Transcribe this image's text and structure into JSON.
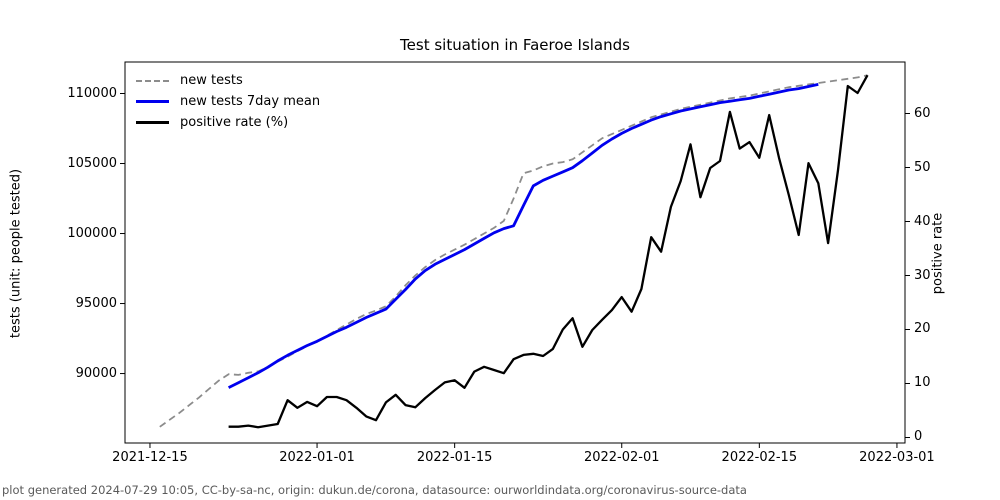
{
  "title": "Test situation in Faeroe Islands",
  "footer": "plot generated 2024-07-29 10:05, CC-by-sa-nc, origin: dukun.de/corona, datasource: ourworldindata.org/coronavirus-source-data",
  "colors": {
    "new_tests": "#8c8c8c",
    "new_tests_7day_mean": "#0000ee",
    "positive_rate": "#000000",
    "axis": "#000000",
    "footer_text": "#5a5a5a"
  },
  "legend": {
    "items": [
      {
        "label": "new tests",
        "color": "#8c8c8c",
        "style": "dashed"
      },
      {
        "label": "new tests 7day mean",
        "color": "#0000ee",
        "style": "solid"
      },
      {
        "label": "positive rate (%)",
        "color": "#000000",
        "style": "solid"
      }
    ]
  },
  "chart_data": {
    "type": "line",
    "title": "Test situation in Faeroe Islands",
    "x_axis": {
      "label": "",
      "epoch": "2021-12-15",
      "unit": "days since 2021-12-15",
      "range": [
        -2.54,
        76.82
      ],
      "ticks": [
        {
          "d": 0,
          "label": "2021-12-15"
        },
        {
          "d": 17,
          "label": "2022-01-01"
        },
        {
          "d": 31,
          "label": "2022-01-15"
        },
        {
          "d": 48,
          "label": "2022-02-01"
        },
        {
          "d": 62,
          "label": "2022-02-15"
        },
        {
          "d": 76,
          "label": "2022-03-01"
        }
      ]
    },
    "y_left": {
      "label": "tests (unit: people tested)",
      "range": [
        85040,
        112250
      ],
      "ticks": [
        {
          "v": 90000,
          "label": "90000"
        },
        {
          "v": 95000,
          "label": "95000"
        },
        {
          "v": 100000,
          "label": "100000"
        },
        {
          "v": 105000,
          "label": "105000"
        },
        {
          "v": 110000,
          "label": "110000"
        }
      ]
    },
    "y_right": {
      "label": "positive rate",
      "range": [
        -1.02,
        69.54
      ],
      "ticks": [
        {
          "v": 0,
          "label": "0"
        },
        {
          "v": 10,
          "label": "10"
        },
        {
          "v": 20,
          "label": "20"
        },
        {
          "v": 30,
          "label": "30"
        },
        {
          "v": 40,
          "label": "40"
        },
        {
          "v": 50,
          "label": "50"
        },
        {
          "v": 60,
          "label": "60"
        }
      ]
    },
    "grid": false,
    "legend_position": "upper left",
    "series": [
      {
        "name": "new tests",
        "axis": "left",
        "color": "#8c8c8c",
        "dash": "7 4.5",
        "width": 1.8,
        "points": [
          [
            1,
            86200
          ],
          [
            2,
            86700
          ],
          [
            3,
            87200
          ],
          [
            4,
            87750
          ],
          [
            5,
            88300
          ],
          [
            6,
            88900
          ],
          [
            7,
            89500
          ],
          [
            8,
            89950
          ],
          [
            9,
            89900
          ],
          [
            10,
            90050
          ],
          [
            11,
            90150
          ],
          [
            12,
            90450
          ],
          [
            13,
            90850
          ],
          [
            14,
            91200
          ],
          [
            15,
            91600
          ],
          [
            16,
            91950
          ],
          [
            17,
            92300
          ],
          [
            18,
            92700
          ],
          [
            19,
            93100
          ],
          [
            20,
            93500
          ],
          [
            21,
            93900
          ],
          [
            22,
            94250
          ],
          [
            23,
            94500
          ],
          [
            24,
            94800
          ],
          [
            25,
            95500
          ],
          [
            26,
            96300
          ],
          [
            27,
            97000
          ],
          [
            28,
            97600
          ],
          [
            29,
            98100
          ],
          [
            30,
            98500
          ],
          [
            31,
            98850
          ],
          [
            32,
            99200
          ],
          [
            33,
            99600
          ],
          [
            34,
            100000
          ],
          [
            35,
            100400
          ],
          [
            36,
            100900
          ],
          [
            37,
            102500
          ],
          [
            38,
            104300
          ],
          [
            39,
            104500
          ],
          [
            40,
            104800
          ],
          [
            41,
            105000
          ],
          [
            42,
            105100
          ],
          [
            43,
            105300
          ],
          [
            44,
            105800
          ],
          [
            45,
            106300
          ],
          [
            46,
            106800
          ],
          [
            47,
            107100
          ],
          [
            48,
            107400
          ],
          [
            49,
            107700
          ],
          [
            50,
            108000
          ],
          [
            51,
            108300
          ],
          [
            52,
            108500
          ],
          [
            53,
            108700
          ],
          [
            54,
            108900
          ],
          [
            55,
            109050
          ],
          [
            56,
            109200
          ],
          [
            57,
            109350
          ],
          [
            58,
            109500
          ],
          [
            59,
            109650
          ],
          [
            60,
            109750
          ],
          [
            61,
            109850
          ],
          [
            62,
            110000
          ],
          [
            63,
            110150
          ],
          [
            64,
            110300
          ],
          [
            65,
            110450
          ],
          [
            66,
            110550
          ],
          [
            67,
            110650
          ],
          [
            68,
            110750
          ],
          [
            69,
            110850
          ],
          [
            70,
            110950
          ],
          [
            71,
            111050
          ],
          [
            72,
            111150
          ],
          [
            73,
            111300
          ]
        ]
      },
      {
        "name": "new tests 7day mean",
        "axis": "left",
        "color": "#0000ee",
        "dash": null,
        "width": 2.8,
        "points": [
          [
            8,
            89000
          ],
          [
            9,
            89350
          ],
          [
            10,
            89700
          ],
          [
            11,
            90050
          ],
          [
            12,
            90450
          ],
          [
            13,
            90900
          ],
          [
            14,
            91300
          ],
          [
            15,
            91650
          ],
          [
            16,
            92000
          ],
          [
            17,
            92300
          ],
          [
            18,
            92650
          ],
          [
            19,
            93000
          ],
          [
            20,
            93300
          ],
          [
            21,
            93650
          ],
          [
            22,
            94000
          ],
          [
            23,
            94300
          ],
          [
            24,
            94600
          ],
          [
            25,
            95300
          ],
          [
            26,
            96000
          ],
          [
            27,
            96750
          ],
          [
            28,
            97350
          ],
          [
            29,
            97800
          ],
          [
            30,
            98150
          ],
          [
            31,
            98500
          ],
          [
            32,
            98850
          ],
          [
            33,
            99250
          ],
          [
            34,
            99650
          ],
          [
            35,
            100050
          ],
          [
            36,
            100350
          ],
          [
            37,
            100550
          ],
          [
            38,
            102000
          ],
          [
            39,
            103400
          ],
          [
            40,
            103800
          ],
          [
            41,
            104100
          ],
          [
            42,
            104400
          ],
          [
            43,
            104700
          ],
          [
            44,
            105200
          ],
          [
            45,
            105750
          ],
          [
            46,
            106300
          ],
          [
            47,
            106750
          ],
          [
            48,
            107150
          ],
          [
            49,
            107500
          ],
          [
            50,
            107800
          ],
          [
            51,
            108100
          ],
          [
            52,
            108350
          ],
          [
            53,
            108550
          ],
          [
            54,
            108750
          ],
          [
            55,
            108900
          ],
          [
            56,
            109050
          ],
          [
            57,
            109200
          ],
          [
            58,
            109350
          ],
          [
            59,
            109450
          ],
          [
            60,
            109550
          ],
          [
            61,
            109650
          ],
          [
            62,
            109800
          ],
          [
            63,
            109950
          ],
          [
            64,
            110100
          ],
          [
            65,
            110250
          ],
          [
            66,
            110350
          ],
          [
            67,
            110500
          ],
          [
            68,
            110650
          ]
        ]
      },
      {
        "name": "positive rate (%)",
        "axis": "right",
        "color": "#000000",
        "dash": null,
        "width": 2.3,
        "points": [
          [
            8,
            2.0
          ],
          [
            9,
            2.0
          ],
          [
            10,
            2.2
          ],
          [
            11,
            1.9
          ],
          [
            12,
            2.2
          ],
          [
            13,
            2.5
          ],
          [
            14,
            6.9
          ],
          [
            15,
            5.5
          ],
          [
            16,
            6.6
          ],
          [
            17,
            5.8
          ],
          [
            18,
            7.5
          ],
          [
            19,
            7.5
          ],
          [
            20,
            6.9
          ],
          [
            21,
            5.5
          ],
          [
            22,
            3.9
          ],
          [
            23,
            3.2
          ],
          [
            24,
            6.5
          ],
          [
            25,
            7.9
          ],
          [
            26,
            6.0
          ],
          [
            27,
            5.6
          ],
          [
            28,
            7.3
          ],
          [
            29,
            8.8
          ],
          [
            30,
            10.2
          ],
          [
            31,
            10.6
          ],
          [
            32,
            9.2
          ],
          [
            33,
            12.2
          ],
          [
            34,
            13.1
          ],
          [
            35,
            12.5
          ],
          [
            36,
            11.9
          ],
          [
            37,
            14.5
          ],
          [
            38,
            15.3
          ],
          [
            39,
            15.5
          ],
          [
            40,
            15.1
          ],
          [
            41,
            16.4
          ],
          [
            42,
            20.0
          ],
          [
            43,
            22.1
          ],
          [
            44,
            16.8
          ],
          [
            45,
            19.9
          ],
          [
            46,
            21.8
          ],
          [
            47,
            23.6
          ],
          [
            48,
            26.0
          ],
          [
            49,
            23.3
          ],
          [
            50,
            27.5
          ],
          [
            51,
            37.1
          ],
          [
            52,
            34.4
          ],
          [
            53,
            42.7
          ],
          [
            54,
            47.5
          ],
          [
            55,
            54.3
          ],
          [
            56,
            44.5
          ],
          [
            57,
            49.9
          ],
          [
            58,
            51.2
          ],
          [
            59,
            60.3
          ],
          [
            60,
            53.5
          ],
          [
            61,
            54.7
          ],
          [
            62,
            51.8
          ],
          [
            63,
            59.7
          ],
          [
            64,
            51.8
          ],
          [
            65,
            44.9
          ],
          [
            66,
            37.5
          ],
          [
            67,
            50.8
          ],
          [
            68,
            47.1
          ],
          [
            69,
            36.0
          ],
          [
            70,
            49.5
          ],
          [
            71,
            65.1
          ],
          [
            72,
            63.8
          ],
          [
            73,
            67.1
          ]
        ]
      }
    ]
  }
}
